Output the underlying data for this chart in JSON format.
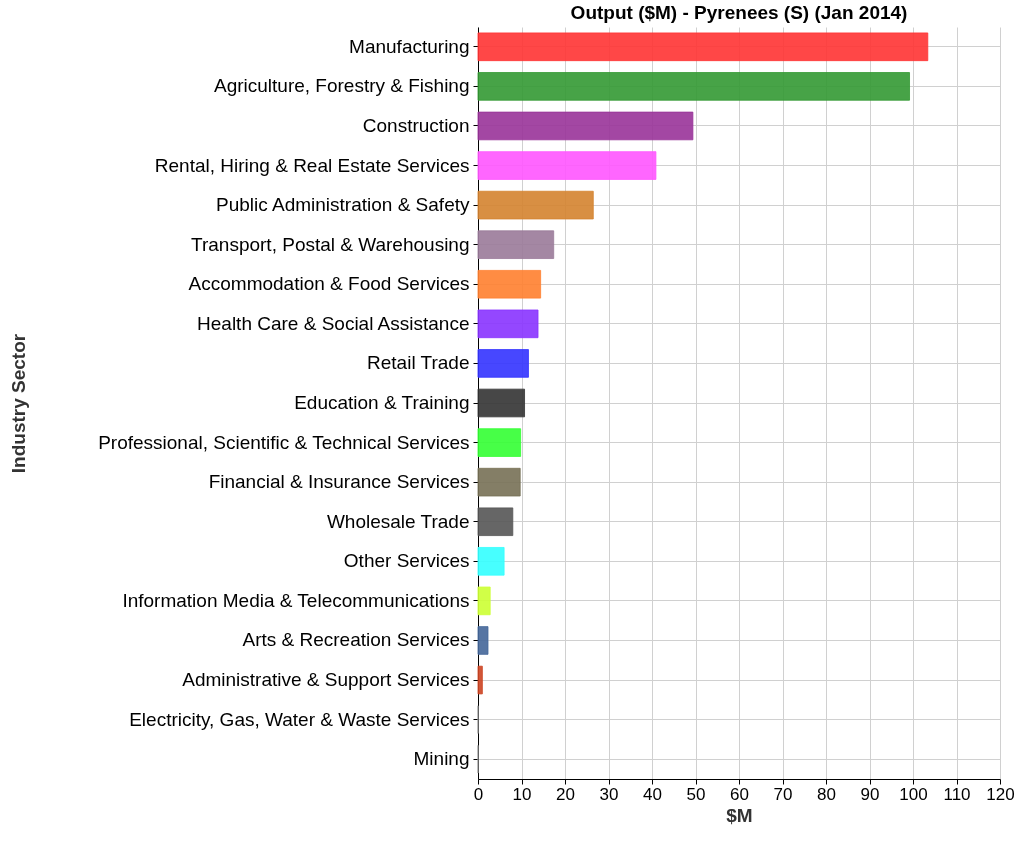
{
  "chart_data": {
    "type": "bar",
    "orientation": "horizontal",
    "title": "Output ($M) - Pyrenees (S) (Jan 2014)",
    "xlabel": "$M",
    "ylabel": "Industry Sector",
    "categories": [
      "Manufacturing",
      "Agriculture, Forestry & Fishing",
      "Construction",
      "Rental, Hiring & Real Estate Services",
      "Public Administration & Safety",
      "Transport, Postal & Warehousing",
      "Accommodation & Food Services",
      "Health Care & Social Assistance",
      "Retail Trade",
      "Education & Training",
      "Professional, Scientific & Technical Services",
      "Financial & Insurance Services",
      "Wholesale Trade",
      "Other Services",
      "Information Media & Telecommunications",
      "Arts & Recreation Services",
      "Administrative & Support Services",
      "Electricity, Gas, Water & Waste Services",
      "Mining"
    ],
    "values": [
      103.4,
      99.2,
      49.4,
      40.9,
      26.5,
      17.4,
      14.4,
      13.8,
      11.6,
      10.7,
      9.8,
      9.7,
      8.0,
      6.0,
      2.8,
      2.3,
      1.0,
      0,
      0
    ],
    "colors": [
      "#ff3333",
      "#339933",
      "#993399",
      "#ff55ff",
      "#d4832f",
      "#9a7a99",
      "#ff7f2f",
      "#8833ff",
      "#3333ff",
      "#333333",
      "#33ff33",
      "#777055",
      "#555555",
      "#33ffff",
      "#ccff33",
      "#446699",
      "#cc4422",
      "#999999",
      "#999999"
    ],
    "xlim": [
      0,
      120
    ],
    "xticks": [
      0,
      10,
      20,
      30,
      40,
      50,
      60,
      70,
      80,
      90,
      100,
      110,
      120
    ],
    "grid": true,
    "legend": false
  }
}
